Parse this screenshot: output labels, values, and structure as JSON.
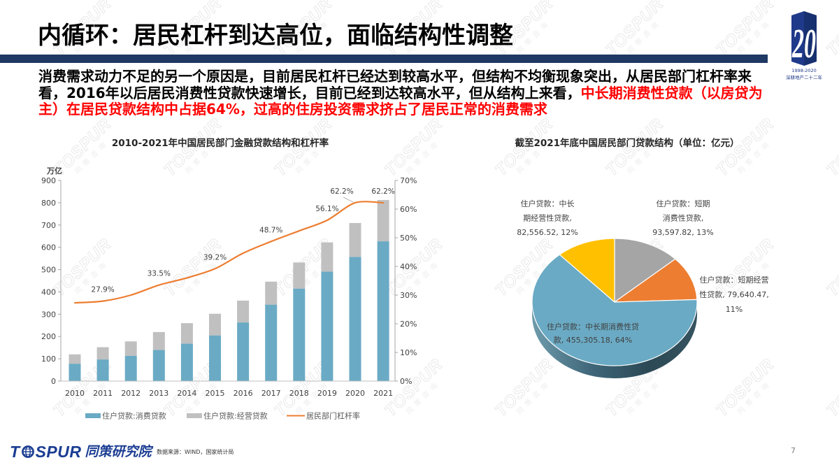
{
  "slide": {
    "title": "内循环：居民杠杆到达高位，面临结构性调整",
    "page_number": "7"
  },
  "theme": {
    "title_bar": "#1f3864",
    "highlight_text": "#ff0000",
    "brand_blue": "#1b3d92"
  },
  "logo": {
    "numeral": "20",
    "years": "1998-2020",
    "slogan": "深耕地产二十二年"
  },
  "body": {
    "line1": "消费需求动力不足的另一个原因是，目前居民杠杆已经达到较高水平，但结构不均衡现象突出，从居民部门杠杆率来",
    "line2_normal": "看，2016年以后居民消费性贷款快速增长，目前已经到达较高水平，但从结构上来看，",
    "line2_highlight": "中长期消费性贷款（以房贷为",
    "line3_highlight": "主）在居民贷款结构中占据64%，过高的住房投资需求挤占了居民正常的消费需求"
  },
  "footer": {
    "brand_prefix": "T",
    "brand_suffix": "SPUR",
    "brand_cn": "同策研究院",
    "source": "数据来源：WIND，国家统计局"
  },
  "watermark": {
    "text": "TOSPUR",
    "subtext": "同策咨询"
  },
  "chart_data": [
    {
      "type": "bar+line",
      "title": "2010-2021年中国居民部门金融贷款结构和杠杆率",
      "categories": [
        "2010",
        "2011",
        "2012",
        "2013",
        "2014",
        "2015",
        "2016",
        "2017",
        "2018",
        "2019",
        "2020",
        "2021"
      ],
      "series": [
        {
          "name": "住户贷款:消费贷款",
          "type": "bar",
          "stack": "loans",
          "axis": "left",
          "color": "#6aaac4",
          "values": [
            78,
            97,
            113,
            140,
            168,
            205,
            263,
            343,
            415,
            491,
            557,
            627
          ]
        },
        {
          "name": "住户贷款:经营贷款",
          "type": "bar",
          "stack": "loans",
          "axis": "left",
          "color": "#c0c0c0",
          "values": [
            42,
            55,
            65,
            80,
            92,
            97,
            98,
            103,
            117,
            131,
            152,
            185
          ]
        },
        {
          "name": "居民部门杠杆率",
          "type": "line",
          "axis": "right",
          "color": "#ed7d31",
          "values": [
            27.3,
            27.9,
            30.0,
            33.5,
            36.0,
            39.2,
            44.6,
            48.7,
            52.4,
            56.1,
            62.2,
            62.2
          ]
        }
      ],
      "data_labels": [
        {
          "category": "2011",
          "text": "27.9%"
        },
        {
          "category": "2013",
          "text": "33.5%"
        },
        {
          "category": "2015",
          "text": "39.2%"
        },
        {
          "category": "2017",
          "text": "48.7%"
        },
        {
          "category": "2019",
          "text": "56.1%"
        },
        {
          "category": "2020",
          "text": "62.2%",
          "dx": -19,
          "leader": true
        },
        {
          "category": "2021",
          "text": "62.2%"
        }
      ],
      "xlabel": "",
      "ylabel": "万亿",
      "ylim": [
        0,
        900
      ],
      "yticks": [
        0,
        100,
        200,
        300,
        400,
        500,
        600,
        700,
        800,
        900
      ],
      "y2lim": [
        0,
        70
      ],
      "y2ticks": [
        0,
        10,
        20,
        30,
        40,
        50,
        60,
        70
      ],
      "y2tick_labels": [
        "0%",
        "10%",
        "20%",
        "30%",
        "40%",
        "50%",
        "60%",
        "70%"
      ],
      "grid": false,
      "legend_position": "bottom"
    },
    {
      "type": "pie",
      "style": "3d",
      "title": "截至2021年底中国居民部门贷款结构（单位：亿元）",
      "unit": "亿元",
      "slices": [
        {
          "name": "住户贷款：短期消费性贷款",
          "value": 93597.82,
          "percent": 13,
          "color": "#a5a5a5",
          "label_lines": [
            "住户贷款：短期",
            "消费性贷款,",
            "93,597.82, 13%"
          ]
        },
        {
          "name": "住户贷款：短期经营性贷款",
          "value": 79640.47,
          "percent": 11,
          "color": "#ed7d31",
          "label_lines": [
            "住户贷款：短期经营",
            "性贷款, 79,640.47,",
            "11%"
          ]
        },
        {
          "name": "住户贷款：中长期消费性贷款",
          "value": 455305.18,
          "percent": 64,
          "color": "#6aaac4",
          "label_lines": [
            "住户贷款：中长期消费性贷",
            "款, 455,305.18, 64%"
          ]
        },
        {
          "name": "住户贷款：中长期经营性贷款",
          "value": 82556.52,
          "percent": 12,
          "color": "#ffc000",
          "label_lines": [
            "住户贷款：中长",
            "期经营性贷款,",
            "82,556.52, 12%"
          ]
        }
      ]
    }
  ]
}
